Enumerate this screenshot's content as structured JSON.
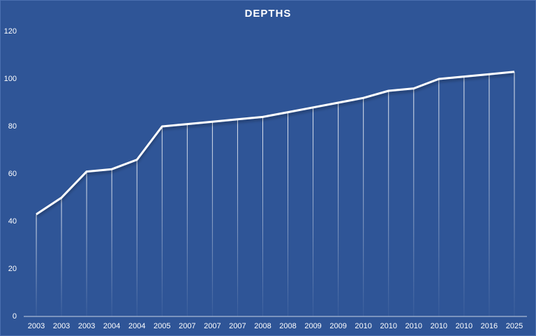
{
  "chart_data": {
    "type": "line",
    "title": "DEPTHS",
    "categories": [
      "2003",
      "2003",
      "2003",
      "2004",
      "2004",
      "2005",
      "2007",
      "2007",
      "2007",
      "2008",
      "2008",
      "2009",
      "2009",
      "2010",
      "2010",
      "2010",
      "2010",
      "2010",
      "2016",
      "2025"
    ],
    "values": [
      43,
      50,
      61,
      62,
      66,
      80,
      81,
      82,
      83,
      84,
      86,
      88,
      90,
      92,
      95,
      96,
      100,
      101,
      102,
      103
    ],
    "color": "#ffffff",
    "ylim": [
      0,
      120
    ],
    "yticks": [
      0,
      20,
      40,
      60,
      80,
      100,
      120
    ],
    "drop_lines": true
  }
}
